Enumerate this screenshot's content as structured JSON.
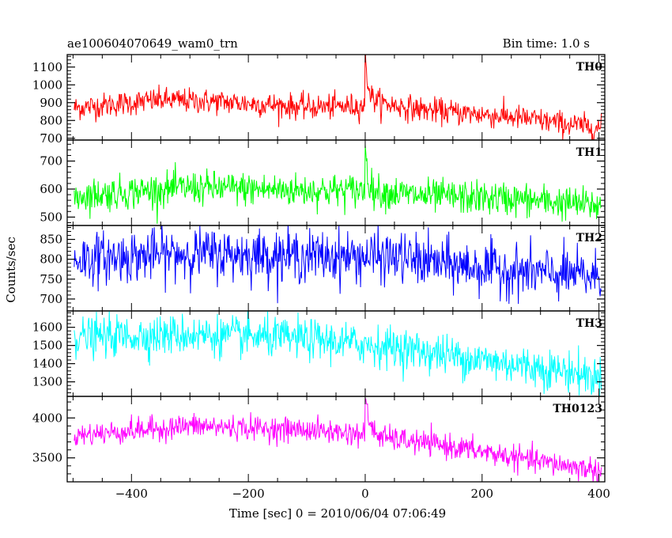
{
  "header": {
    "title": "ae100604070649_wam0_trn",
    "bin_time": "Bin time: 1.0 s"
  },
  "chart_data": {
    "type": "line",
    "xlabel": "Time [sec] 0 = 2010/06/04 07:06:49",
    "ylabel": "Counts/sec",
    "xlim": [
      -510,
      410
    ],
    "x_ticks": [
      -400,
      -200,
      0,
      200,
      400
    ],
    "x_tick_labels": [
      "−400",
      "−200",
      "0",
      "200",
      "400"
    ],
    "x_range": [
      -498,
      404
    ],
    "bin_time_s": 1.0,
    "panels": [
      {
        "name": "TH0",
        "color": "#ff0000",
        "ylim": [
          690,
          1170
        ],
        "y_ticks": [
          700,
          800,
          900,
          1000,
          1100
        ],
        "noise": 35,
        "spike_peak": 1160,
        "spike_decay_s": 6,
        "trend": [
          [
            -498,
            870
          ],
          [
            -350,
            915
          ],
          [
            -250,
            905
          ],
          [
            -100,
            875
          ],
          [
            -10,
            880
          ],
          [
            20,
            900
          ],
          [
            100,
            860
          ],
          [
            250,
            820
          ],
          [
            404,
            755
          ]
        ]
      },
      {
        "name": "TH1",
        "color": "#00ff00",
        "ylim": [
          470,
          775
        ],
        "y_ticks": [
          500,
          600,
          700
        ],
        "noise": 30,
        "spike_peak": 770,
        "spike_decay_s": 4,
        "trend": [
          [
            -498,
            575
          ],
          [
            -300,
            605
          ],
          [
            -100,
            595
          ],
          [
            0,
            595
          ],
          [
            100,
            575
          ],
          [
            250,
            565
          ],
          [
            404,
            540
          ]
        ]
      },
      {
        "name": "TH2",
        "color": "#0000ff",
        "ylim": [
          670,
          885
        ],
        "y_ticks": [
          700,
          750,
          800,
          850
        ],
        "noise": 32,
        "spike_peak": null,
        "spike_decay_s": 0,
        "trend": [
          [
            -498,
            800
          ],
          [
            -300,
            815
          ],
          [
            -100,
            808
          ],
          [
            50,
            805
          ],
          [
            150,
            785
          ],
          [
            300,
            765
          ],
          [
            404,
            755
          ]
        ]
      },
      {
        "name": "TH3",
        "color": "#00ffff",
        "ylim": [
          1220,
          1690
        ],
        "y_ticks": [
          1300,
          1400,
          1500,
          1600
        ],
        "noise": 55,
        "spike_peak": null,
        "spike_decay_s": 0,
        "trend": [
          [
            -498,
            1545
          ],
          [
            -300,
            1560
          ],
          [
            -100,
            1535
          ],
          [
            50,
            1490
          ],
          [
            200,
            1420
          ],
          [
            350,
            1355
          ],
          [
            404,
            1320
          ]
        ]
      },
      {
        "name": "TH0123",
        "color": "#ff00ff",
        "ylim": [
          3200,
          4270
        ],
        "y_ticks": [
          3500,
          4000
        ],
        "noise": 75,
        "spike_peak": 4230,
        "spike_decay_s": 8,
        "trend": [
          [
            -498,
            3780
          ],
          [
            -300,
            3900
          ],
          [
            -100,
            3850
          ],
          [
            -10,
            3800
          ],
          [
            20,
            3760
          ],
          [
            150,
            3640
          ],
          [
            300,
            3450
          ],
          [
            404,
            3340
          ]
        ]
      }
    ]
  }
}
